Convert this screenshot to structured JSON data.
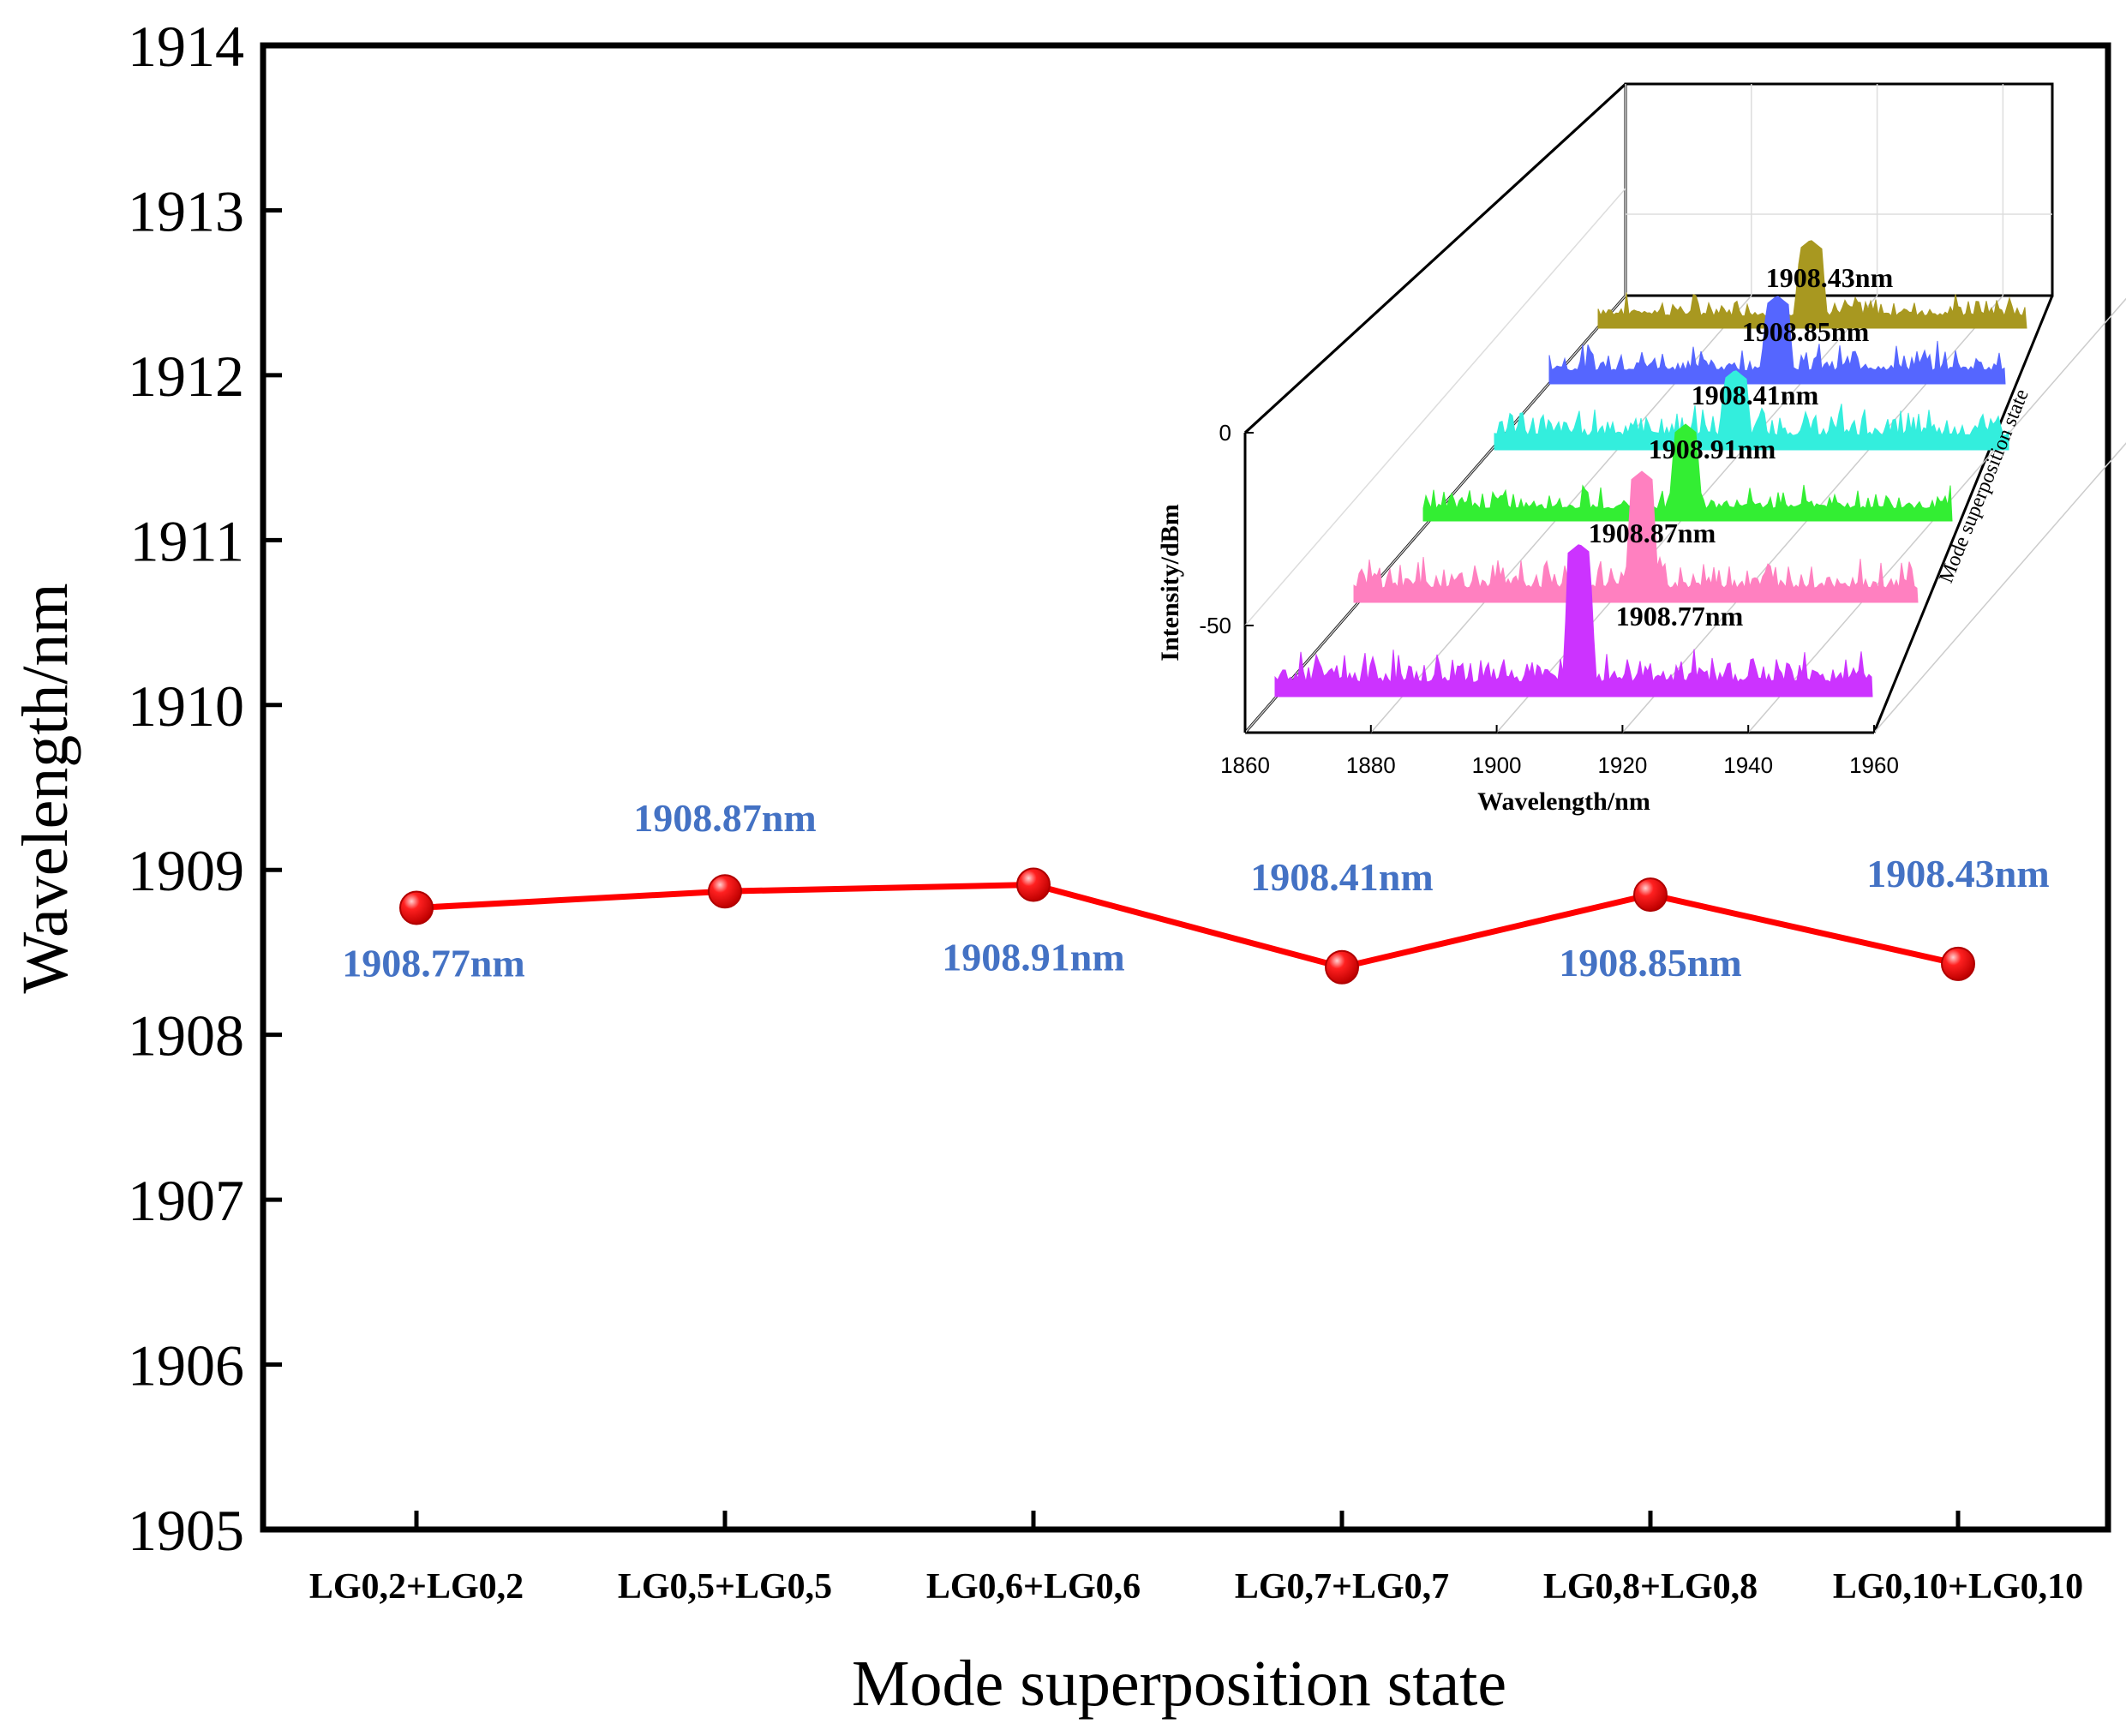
{
  "chart_data": [
    {
      "type": "line",
      "title": "",
      "xlabel": "Mode superposition state",
      "ylabel": "Wavelength/nm",
      "ylim": [
        1905,
        1914
      ],
      "yticks": [
        "1905",
        "1906",
        "1907",
        "1908",
        "1909",
        "1910",
        "1911",
        "1912",
        "1913",
        "1914"
      ],
      "categories": [
        "LG0,2+LG0,2",
        "LG0,5+LG0,5",
        "LG0,6+LG0,6",
        "LG0,7+LG0,7",
        "LG0,8+LG0,8",
        "LG0,10+LG0,10"
      ],
      "series": [
        {
          "name": "Wavelength",
          "values": [
            1908.77,
            1908.87,
            1908.91,
            1908.41,
            1908.85,
            1908.43
          ],
          "color": "#ff0000",
          "labels": [
            "1908.77nm",
            "1908.87nm",
            "1908.91nm",
            "1908.41nm",
            "1908.85nm",
            "1908.43nm"
          ],
          "label_color": "#4472c4"
        }
      ]
    },
    {
      "type": "waterfall",
      "xlabel": "Wavelength/nm",
      "ylabel": "Intensity/dBm",
      "zlabel": "Mode superposition state",
      "xlim": [
        1860,
        1960
      ],
      "xticks": [
        "1860",
        "1880",
        "1900",
        "1920",
        "1940",
        "1960"
      ],
      "yticks": [
        "0",
        "-50"
      ],
      "spectra": [
        {
          "peak": 1908.77,
          "label": "1908.77nm",
          "color": "#cc33ff"
        },
        {
          "peak": 1908.87,
          "label": "1908.87nm",
          "color": "#ff80c0"
        },
        {
          "peak": 1908.91,
          "label": "1908.91nm",
          "color": "#33ee33"
        },
        {
          "peak": 1908.41,
          "label": "1908.41nm",
          "color": "#33eedd"
        },
        {
          "peak": 1908.85,
          "label": "1908.85nm",
          "color": "#5566ff"
        },
        {
          "peak": 1908.43,
          "label": "1908.43nm",
          "color": "#a89820"
        }
      ]
    }
  ]
}
